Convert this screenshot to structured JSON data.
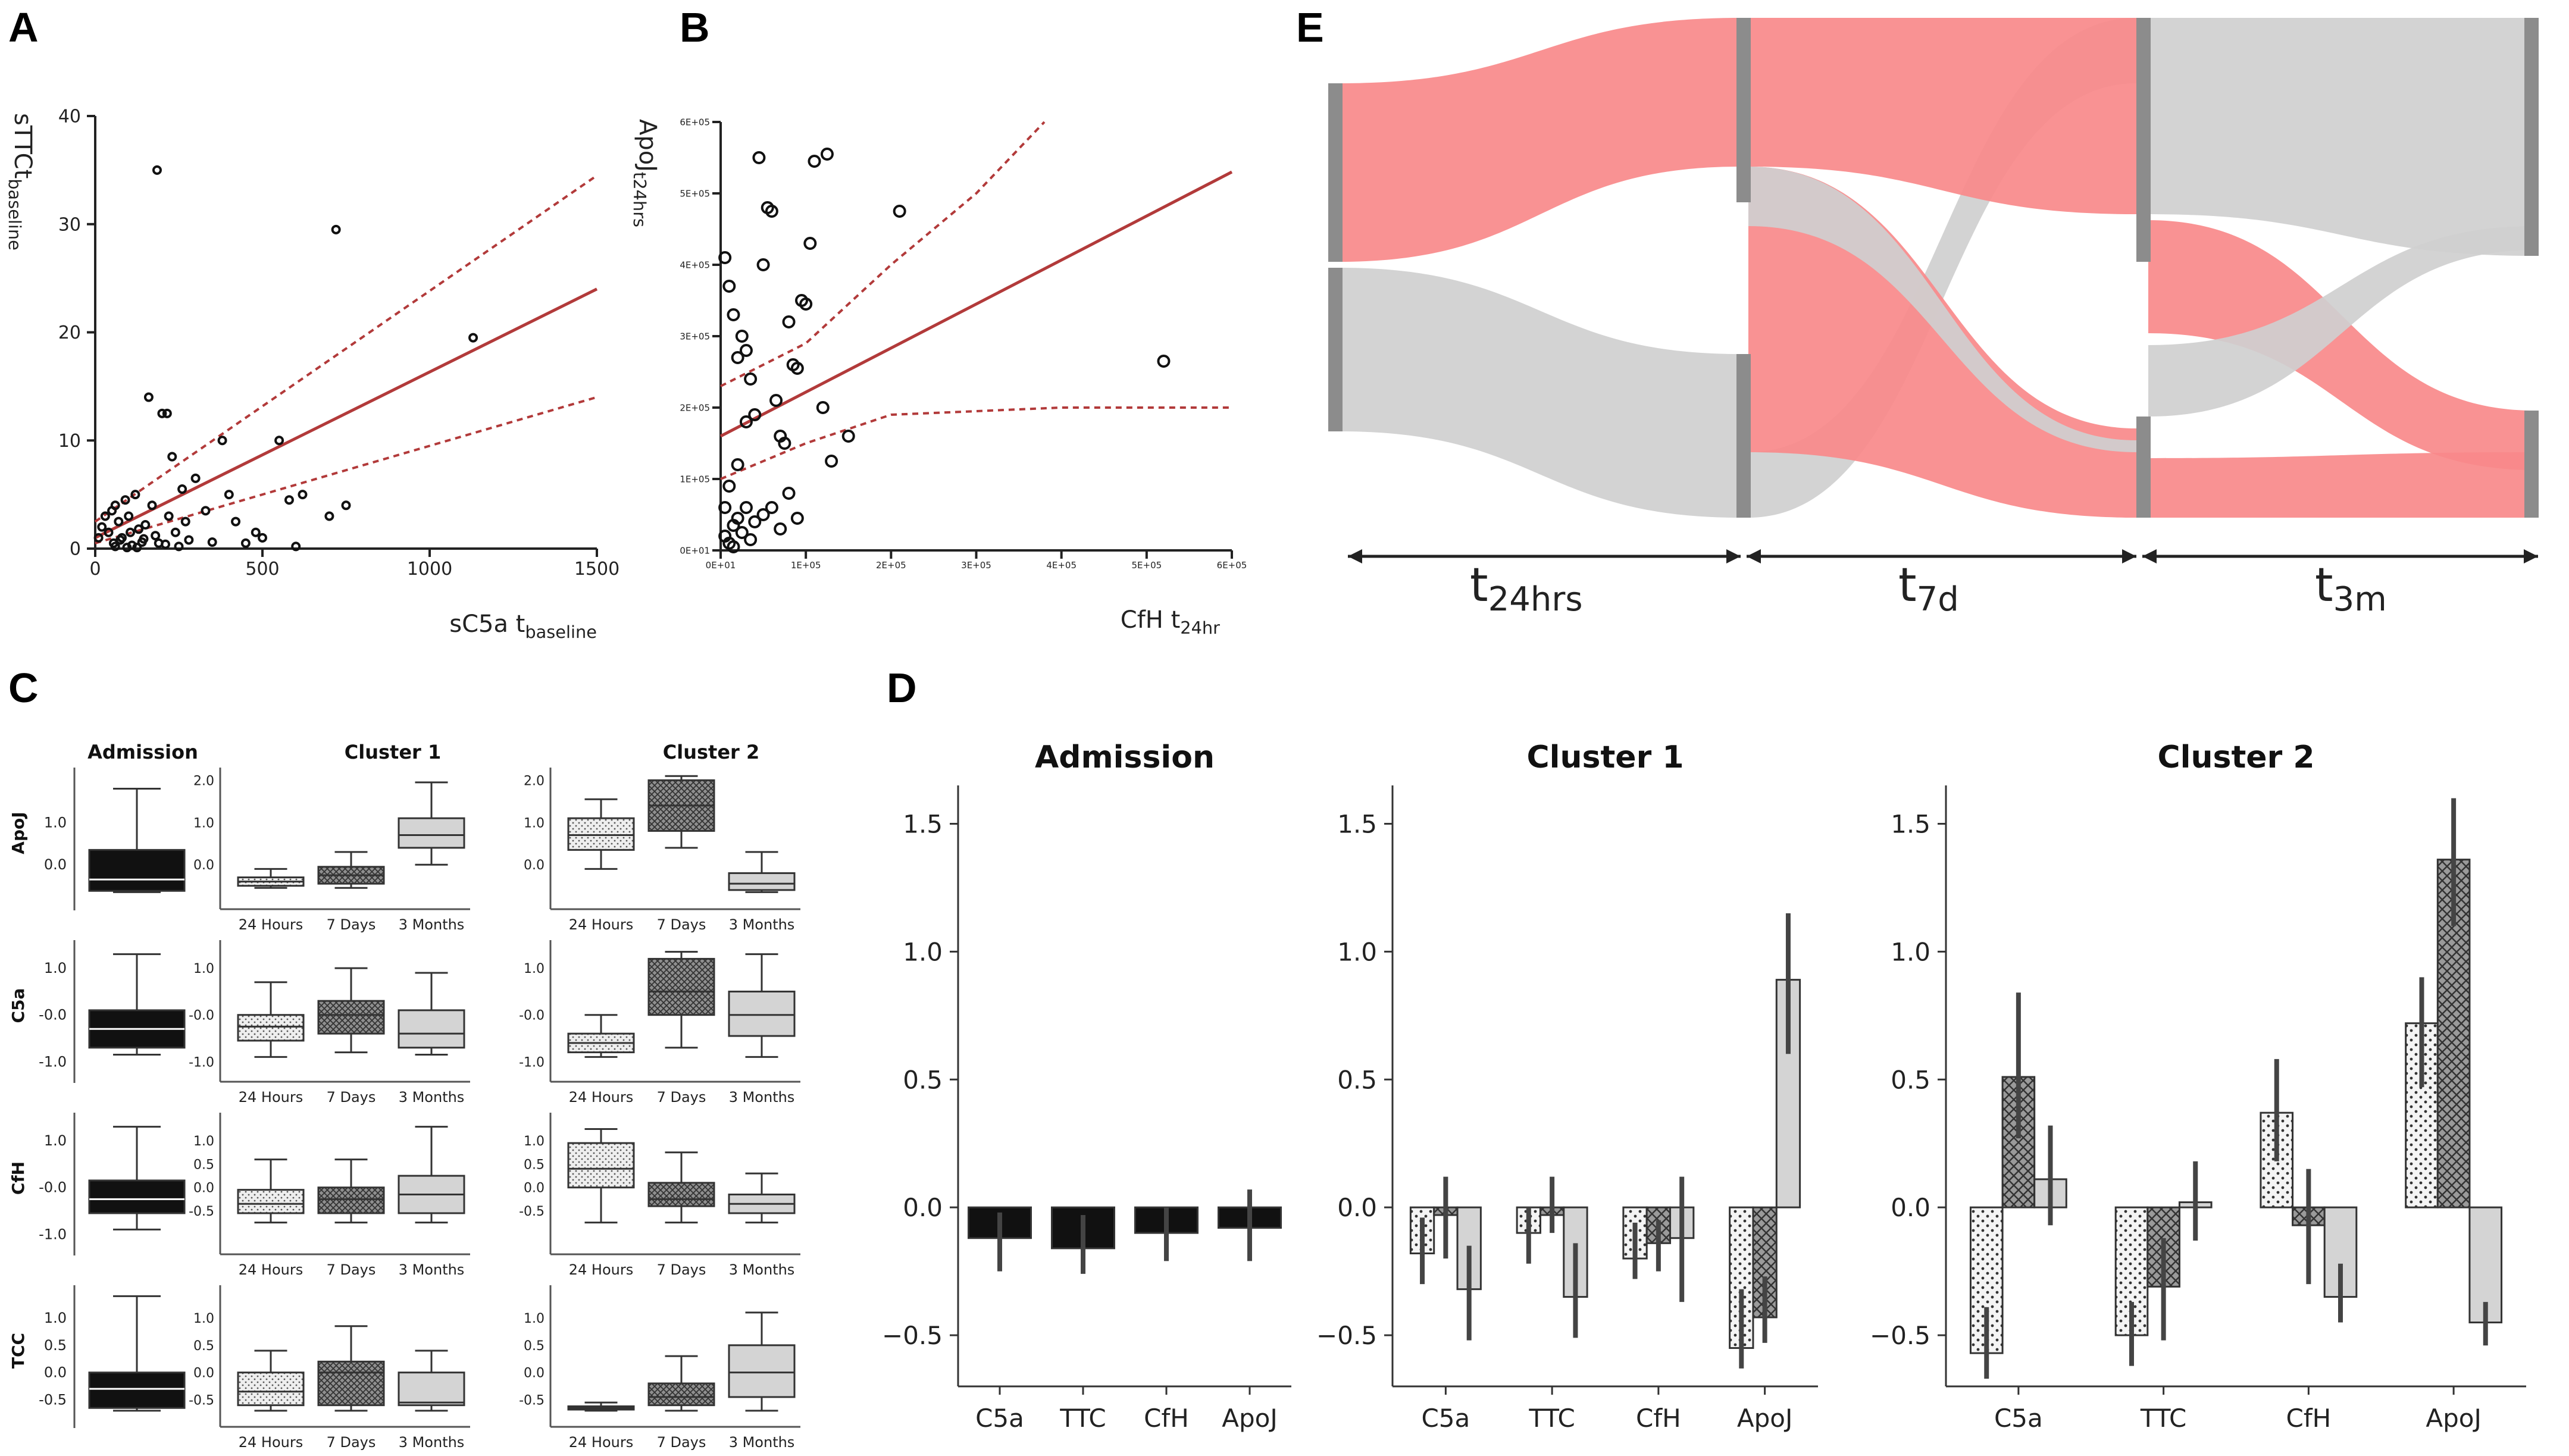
{
  "panels": {
    "A": "A",
    "B": "B",
    "C": "C",
    "D": "D",
    "E": "E"
  },
  "colors": {
    "red": "#f9898a",
    "grey": "#cfcfcf",
    "node": "#8c8c8c",
    "fit": "#b23a3a",
    "dark": "#111111",
    "light": "#d4d4d4"
  },
  "chart_data": [
    {
      "id": "A",
      "type": "scatter",
      "xlabel_main": "sC5a t",
      "xlabel_sub": "baseline",
      "ylabel_main": "sTTCt",
      "ylabel_sub": "baseline",
      "xlim": [
        0,
        1500
      ],
      "ylim": [
        0,
        40
      ],
      "xticks": [
        "0",
        "500",
        "1000",
        "1500"
      ],
      "yticks": [
        "0",
        "10",
        "20",
        "30",
        "40"
      ],
      "points": [
        [
          10,
          1
        ],
        [
          20,
          2
        ],
        [
          30,
          3
        ],
        [
          40,
          1.5
        ],
        [
          50,
          3.5
        ],
        [
          55,
          0.5
        ],
        [
          60,
          4
        ],
        [
          70,
          2.5
        ],
        [
          80,
          1
        ],
        [
          90,
          4.5
        ],
        [
          100,
          3
        ],
        [
          110,
          0.3
        ],
        [
          120,
          5
        ],
        [
          130,
          1.8
        ],
        [
          140,
          0.6
        ],
        [
          150,
          2.2
        ],
        [
          160,
          14
        ],
        [
          170,
          4
        ],
        [
          180,
          1.2
        ],
        [
          185,
          35
        ],
        [
          190,
          0.5
        ],
        [
          200,
          12.5
        ],
        [
          210,
          0.4
        ],
        [
          215,
          12.5
        ],
        [
          220,
          3
        ],
        [
          230,
          8.5
        ],
        [
          240,
          1.5
        ],
        [
          250,
          0.2
        ],
        [
          260,
          5.5
        ],
        [
          270,
          2.5
        ],
        [
          280,
          0.8
        ],
        [
          300,
          6.5
        ],
        [
          330,
          3.5
        ],
        [
          350,
          0.6
        ],
        [
          380,
          10
        ],
        [
          400,
          5
        ],
        [
          420,
          2.5
        ],
        [
          450,
          0.5
        ],
        [
          480,
          1.5
        ],
        [
          500,
          1
        ],
        [
          550,
          10
        ],
        [
          580,
          4.5
        ],
        [
          600,
          0.2
        ],
        [
          620,
          5
        ],
        [
          700,
          3
        ],
        [
          720,
          29.5
        ],
        [
          750,
          4
        ],
        [
          1130,
          19.5
        ],
        [
          60,
          0.2
        ],
        [
          75,
          0.8
        ],
        [
          95,
          0.1
        ],
        [
          105,
          1.5
        ],
        [
          125,
          0.1
        ],
        [
          145,
          0.9
        ]
      ],
      "fit": [
        [
          0,
          1
        ],
        [
          1500,
          24
        ]
      ],
      "ci_upper": [
        [
          0,
          2.5
        ],
        [
          1500,
          34.5
        ]
      ],
      "ci_lower": [
        [
          0,
          0.5
        ],
        [
          1500,
          14
        ]
      ]
    },
    {
      "id": "B",
      "type": "scatter",
      "xlabel_main": "CfH t",
      "xlabel_sub": "24hr",
      "ylabel_main": "ApoJ",
      "ylabel_sub": "t24hrs",
      "xlim": [
        0,
        6
      ],
      "ylim": [
        0,
        6
      ],
      "xticks": [
        "0E+01",
        "1E+05",
        "2E+05",
        "3E+05",
        "4E+05",
        "5E+05",
        "6E+05"
      ],
      "yticks": [
        "0E+01",
        "1E+05",
        "2E+05",
        "3E+05",
        "4E+05",
        "5E+05",
        "6E+05"
      ],
      "points": [
        [
          0.05,
          4.1
        ],
        [
          0.1,
          3.7
        ],
        [
          0.15,
          3.3
        ],
        [
          0.2,
          2.7
        ],
        [
          0.25,
          3.0
        ],
        [
          0.3,
          2.8
        ],
        [
          0.35,
          2.4
        ],
        [
          0.4,
          1.9
        ],
        [
          0.45,
          5.5
        ],
        [
          0.5,
          4.0
        ],
        [
          0.55,
          4.8
        ],
        [
          0.6,
          4.75
        ],
        [
          0.65,
          2.1
        ],
        [
          0.7,
          1.6
        ],
        [
          0.75,
          1.5
        ],
        [
          0.8,
          3.2
        ],
        [
          0.85,
          2.6
        ],
        [
          0.9,
          2.55
        ],
        [
          0.95,
          3.5
        ],
        [
          1.0,
          3.45
        ],
        [
          1.05,
          4.3
        ],
        [
          1.1,
          5.45
        ],
        [
          1.2,
          2.0
        ],
        [
          1.25,
          5.55
        ],
        [
          1.3,
          1.25
        ],
        [
          1.5,
          1.6
        ],
        [
          2.1,
          4.75
        ],
        [
          5.2,
          2.65
        ],
        [
          0.05,
          0.2
        ],
        [
          0.1,
          0.1
        ],
        [
          0.15,
          0.35
        ],
        [
          0.2,
          0.45
        ],
        [
          0.25,
          0.25
        ],
        [
          0.3,
          0.6
        ],
        [
          0.35,
          0.15
        ],
        [
          0.4,
          0.4
        ],
        [
          0.5,
          0.5
        ],
        [
          0.6,
          0.6
        ],
        [
          0.7,
          0.3
        ],
        [
          0.8,
          0.8
        ],
        [
          0.9,
          0.45
        ],
        [
          0.1,
          0.9
        ],
        [
          0.2,
          1.2
        ],
        [
          0.3,
          1.8
        ],
        [
          0.15,
          0.05
        ],
        [
          0.05,
          0.6
        ]
      ],
      "fit": [
        [
          0,
          1.6
        ],
        [
          6,
          5.3
        ]
      ],
      "ci_upper": [
        [
          0,
          2.3
        ],
        [
          1,
          2.9
        ],
        [
          2,
          4.0
        ],
        [
          3,
          5.0
        ],
        [
          3.8,
          6.0
        ]
      ],
      "ci_lower": [
        [
          0,
          1.0
        ],
        [
          1,
          1.5
        ],
        [
          2,
          1.9
        ],
        [
          4,
          2.0
        ],
        [
          6,
          2.0
        ]
      ]
    },
    {
      "id": "C",
      "type": "boxplot",
      "groups": [
        "Admission",
        "Cluster 1",
        "Cluster 2"
      ],
      "timepoints": [
        "24 Hours",
        "7 Days",
        "3 Months"
      ],
      "markers": [
        "ApoJ",
        "C5a",
        "CfH",
        "TCC"
      ],
      "rows": [
        {
          "marker": "ApoJ",
          "yticks": [
            "0.0",
            "1.0"
          ],
          "subticks": [
            "0.0",
            "1.0",
            "2.0"
          ],
          "ylim": [
            -0.8,
            2.3
          ],
          "admission": [
            -0.65,
            -0.62,
            -0.35,
            0.35,
            1.8
          ],
          "cluster1": [
            [
              -0.55,
              -0.5,
              -0.4,
              -0.3,
              -0.1
            ],
            [
              -0.55,
              -0.45,
              -0.25,
              -0.05,
              0.3
            ],
            [
              0.0,
              0.4,
              0.7,
              1.1,
              1.95
            ]
          ],
          "cluster2": [
            [
              -0.1,
              0.35,
              0.7,
              1.1,
              1.55
            ],
            [
              0.4,
              0.8,
              1.4,
              2.0,
              2.1
            ],
            [
              -0.65,
              -0.6,
              -0.45,
              -0.2,
              0.3
            ]
          ]
        },
        {
          "marker": "C5a",
          "yticks": [
            "-1.0",
            "-0.0",
            "1.0"
          ],
          "subticks": [
            "-1.0",
            "-0.0",
            "1.0"
          ],
          "ylim": [
            -1.2,
            1.6
          ],
          "admission": [
            -0.85,
            -0.7,
            -0.3,
            0.1,
            1.3
          ],
          "cluster1": [
            [
              -0.9,
              -0.55,
              -0.25,
              0.0,
              0.7
            ],
            [
              -0.8,
              -0.4,
              0.0,
              0.3,
              1.0
            ],
            [
              -0.85,
              -0.7,
              -0.4,
              0.1,
              0.9
            ]
          ],
          "cluster2": [
            [
              -0.9,
              -0.8,
              -0.6,
              -0.4,
              0.0
            ],
            [
              -0.7,
              0.0,
              0.5,
              1.2,
              1.35
            ],
            [
              -0.9,
              -0.45,
              0.0,
              0.5,
              1.3
            ]
          ]
        },
        {
          "marker": "CfH",
          "yticks": [
            "-1.0",
            "-0.0",
            "1.0"
          ],
          "subticks": [
            "-0.5",
            "0.0",
            "0.5",
            "1.0"
          ],
          "ylim": [
            -1.2,
            1.6
          ],
          "admission": [
            -0.9,
            -0.55,
            -0.25,
            0.15,
            1.3
          ],
          "cluster1": [
            [
              -0.75,
              -0.55,
              -0.35,
              -0.05,
              0.6
            ],
            [
              -0.75,
              -0.55,
              -0.25,
              0.0,
              0.6
            ],
            [
              -0.75,
              -0.55,
              -0.15,
              0.25,
              1.3
            ]
          ],
          "cluster2": [
            [
              -0.75,
              0.0,
              0.4,
              0.95,
              1.25
            ],
            [
              -0.75,
              -0.4,
              -0.25,
              0.1,
              0.75
            ],
            [
              -0.75,
              -0.55,
              -0.35,
              -0.15,
              0.3
            ]
          ]
        },
        {
          "marker": "TCC",
          "yticks": [
            "-0.5",
            "0.0",
            "0.5",
            "1.0"
          ],
          "subticks": [
            "-0.5",
            "0.0",
            "0.5",
            "1.0"
          ],
          "ylim": [
            -0.8,
            1.6
          ],
          "admission": [
            -0.7,
            -0.65,
            -0.3,
            0.0,
            1.4
          ],
          "cluster1": [
            [
              -0.7,
              -0.6,
              -0.35,
              0.0,
              0.4
            ],
            [
              -0.7,
              -0.6,
              0.0,
              0.2,
              0.85
            ],
            [
              -0.7,
              -0.6,
              -0.55,
              0.0,
              0.4
            ]
          ],
          "cluster2": [
            [
              -0.7,
              -0.68,
              -0.65,
              -0.62,
              -0.55
            ],
            [
              -0.7,
              -0.6,
              -0.45,
              -0.2,
              0.3
            ],
            [
              -0.7,
              -0.45,
              0.0,
              0.5,
              1.1
            ]
          ]
        }
      ]
    },
    {
      "id": "D",
      "type": "bar",
      "categories": [
        "C5a",
        "TTC",
        "CfH",
        "ApoJ"
      ],
      "ylim": [
        -0.7,
        1.65
      ],
      "yticks": [
        "−0.5",
        "0.0",
        "0.5",
        "1.0",
        "1.5"
      ],
      "subplots": [
        {
          "title": "Admission",
          "series": [
            {
              "name": "Admission",
              "values": [
                -0.12,
                -0.16,
                -0.1,
                -0.08
              ],
              "err_low": [
                -0.25,
                -0.26,
                -0.21,
                -0.21
              ],
              "err_high": [
                -0.02,
                -0.03,
                0.0,
                0.07
              ]
            }
          ]
        },
        {
          "title": "Cluster 1",
          "series": [
            {
              "name": "24 Hours",
              "values": [
                -0.18,
                -0.1,
                -0.2,
                -0.55
              ],
              "err_low": [
                -0.3,
                -0.22,
                -0.28,
                -0.63
              ],
              "err_high": [
                -0.04,
                0.0,
                -0.06,
                -0.32
              ]
            },
            {
              "name": "7 Days",
              "values": [
                -0.03,
                -0.03,
                -0.14,
                -0.43
              ],
              "err_low": [
                -0.2,
                -0.1,
                -0.25,
                -0.53
              ],
              "err_high": [
                0.12,
                0.12,
                -0.05,
                -0.27
              ]
            },
            {
              "name": "3 Months",
              "values": [
                -0.32,
                -0.35,
                -0.12,
                0.89
              ],
              "err_low": [
                -0.52,
                -0.51,
                -0.37,
                0.6
              ],
              "err_high": [
                -0.15,
                -0.14,
                0.12,
                1.15
              ]
            }
          ]
        },
        {
          "title": "Cluster 2",
          "series": [
            {
              "name": "24 Hours",
              "values": [
                -0.57,
                -0.5,
                0.37,
                0.72
              ],
              "err_low": [
                -0.67,
                -0.62,
                0.18,
                0.47
              ],
              "err_high": [
                -0.39,
                -0.37,
                0.58,
                0.9
              ]
            },
            {
              "name": "7 Days",
              "values": [
                0.51,
                -0.31,
                -0.07,
                1.36
              ],
              "err_low": [
                0.27,
                -0.52,
                -0.3,
                1.1
              ],
              "err_high": [
                0.84,
                -0.12,
                0.15,
                1.6
              ]
            },
            {
              "name": "3 Months",
              "values": [
                0.11,
                0.02,
                -0.35,
                -0.45
              ],
              "err_low": [
                -0.07,
                -0.13,
                -0.45,
                -0.54
              ],
              "err_high": [
                0.32,
                0.18,
                -0.22,
                -0.37
              ]
            }
          ]
        }
      ]
    },
    {
      "id": "E",
      "type": "sankey",
      "stages": [
        {
          "main": "t",
          "sub": "24hrs"
        },
        {
          "main": "t",
          "sub": "7d"
        },
        {
          "main": "t",
          "sub": "3m"
        }
      ],
      "flows": [
        {
          "from_stage": 0,
          "to_stage": 1,
          "color": "red",
          "from_cluster": 1,
          "to_cluster": 1,
          "share": 1.0
        },
        {
          "from_stage": 0,
          "to_stage": 1,
          "color": "grey",
          "from_cluster": 2,
          "to_cluster": 2,
          "share": 1.0
        },
        {
          "from_stage": 1,
          "to_stage": 2,
          "color": "red",
          "from_cluster": 1,
          "to_cluster": 1,
          "share": 0.3
        },
        {
          "from_stage": 1,
          "to_stage": 2,
          "color": "grey",
          "from_cluster": 1,
          "to_cluster": 2,
          "share": 0.3
        },
        {
          "from_stage": 1,
          "to_stage": 2,
          "color": "red",
          "from_cluster": 2,
          "to_cluster": 1,
          "share": 0.7
        },
        {
          "from_stage": 1,
          "to_stage": 2,
          "color": "grey",
          "from_cluster": 2,
          "to_cluster": 2,
          "share": 0.3
        }
      ]
    }
  ]
}
